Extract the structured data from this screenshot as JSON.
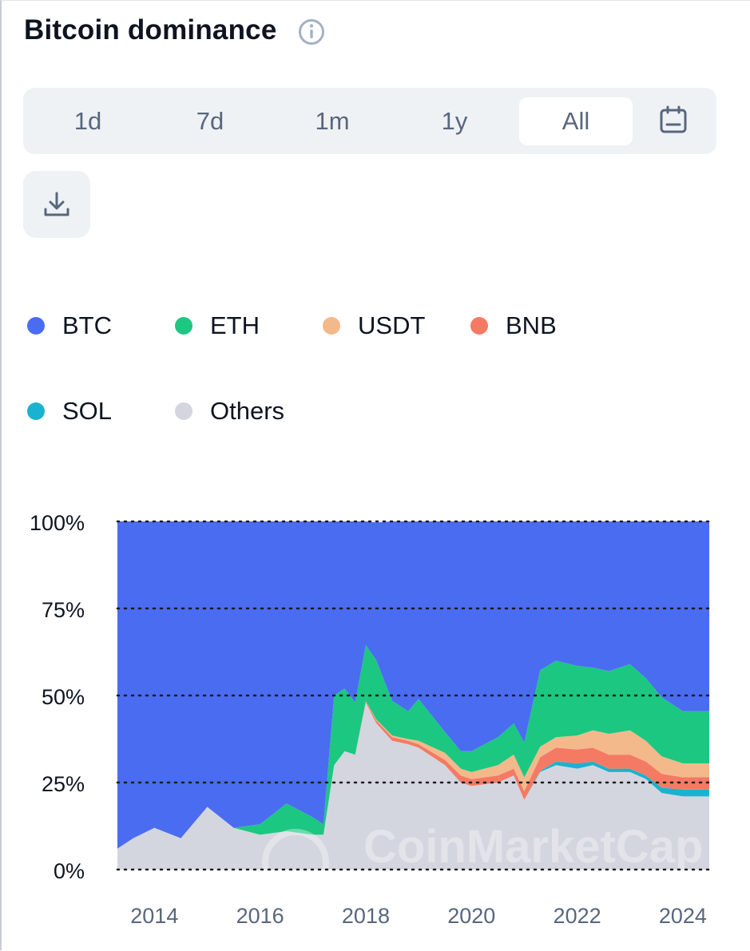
{
  "title": "Bitcoin dominance",
  "ranges": [
    "1d",
    "7d",
    "1m",
    "1y",
    "All"
  ],
  "active_range": "All",
  "watermark": "CoinMarketCap",
  "colors": {
    "BTC": "#4a6cf0",
    "ETH": "#1cc781",
    "USDT": "#f3b98a",
    "BNB": "#f47a64",
    "SOL": "#1bb2cf",
    "Others": "#d3d6df"
  },
  "chart_data": {
    "type": "area",
    "stacked": true,
    "ylim": [
      0,
      100
    ],
    "yticks": [
      "0%",
      "25%",
      "50%",
      "75%",
      "100%"
    ],
    "ytick_values": [
      0,
      25,
      50,
      75,
      100
    ],
    "xticks": [
      "2014",
      "2016",
      "2018",
      "2020",
      "2022",
      "2024"
    ],
    "xtick_values": [
      2014,
      2016,
      2018,
      2020,
      2022,
      2024
    ],
    "xlim": [
      2013.3,
      2024.5
    ],
    "x": [
      2013.3,
      2013.6,
      2014.0,
      2014.5,
      2015.0,
      2015.5,
      2016.0,
      2016.5,
      2017.0,
      2017.2,
      2017.4,
      2017.6,
      2017.8,
      2018.0,
      2018.2,
      2018.5,
      2018.8,
      2019.0,
      2019.5,
      2019.8,
      2020.0,
      2020.5,
      2020.8,
      2021.0,
      2021.3,
      2021.6,
      2022.0,
      2022.3,
      2022.6,
      2023.0,
      2023.3,
      2023.6,
      2024.0,
      2024.5
    ],
    "series": [
      {
        "name": "Others",
        "values": [
          6,
          9,
          12,
          9,
          18,
          12,
          10,
          11,
          10,
          10,
          30,
          34,
          33,
          48,
          42,
          37,
          36,
          35,
          30,
          25,
          24,
          25,
          27,
          20,
          28,
          30,
          29,
          30,
          28,
          28,
          26,
          22,
          21,
          21
        ]
      },
      {
        "name": "SOL",
        "values": [
          0,
          0,
          0,
          0,
          0,
          0,
          0,
          0,
          0,
          0,
          0,
          0,
          0,
          0,
          0,
          0,
          0,
          0,
          0,
          0,
          0,
          0,
          0,
          0,
          0.3,
          1,
          1.5,
          1,
          1,
          1,
          1,
          1.5,
          2,
          2
        ]
      },
      {
        "name": "BNB",
        "values": [
          0,
          0,
          0,
          0,
          0,
          0,
          0,
          0,
          0,
          0,
          0,
          0,
          0,
          0.5,
          0.8,
          1,
          1,
          1,
          1.5,
          2,
          2,
          2,
          2,
          2.5,
          4,
          4,
          4,
          4,
          4,
          4,
          4,
          4,
          3.5,
          3.5
        ]
      },
      {
        "name": "USDT",
        "values": [
          0,
          0,
          0,
          0,
          0,
          0,
          0,
          0,
          0,
          0,
          0,
          0,
          0,
          0,
          0.3,
          0.5,
          0.5,
          1,
          2,
          2,
          2,
          3,
          4,
          4,
          3,
          3,
          4,
          5,
          6,
          7,
          6,
          5,
          4,
          4
        ]
      },
      {
        "name": "ETH",
        "values": [
          0,
          0,
          0,
          0,
          0,
          0,
          3,
          8,
          5,
          3,
          20,
          18,
          15,
          16,
          17,
          10,
          8,
          12,
          6,
          5,
          6,
          8,
          9,
          10,
          22,
          22,
          20,
          18,
          18,
          19,
          18,
          17,
          15,
          15
        ]
      },
      {
        "name": "BTC",
        "values": [
          94,
          91,
          88,
          91,
          82,
          88,
          87,
          81,
          85,
          87,
          50,
          48,
          52,
          35.5,
          39.6,
          51.5,
          54.5,
          51,
          60.5,
          66,
          66,
          62,
          58,
          63.5,
          42.7,
          40,
          41.5,
          42,
          43,
          41,
          45,
          50.5,
          54.5,
          54.5
        ]
      }
    ]
  }
}
